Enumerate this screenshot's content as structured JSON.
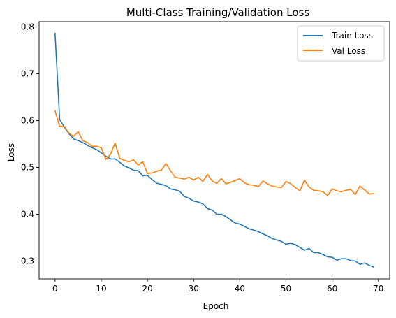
{
  "chart_data": {
    "type": "line",
    "title": "Multi-Class Training/Validation Loss",
    "xlabel": "Epoch",
    "ylabel": "Loss",
    "xlim": [
      -3.45,
      72.45
    ],
    "ylim": [
      0.262,
      0.811
    ],
    "xticks": [
      0,
      10,
      20,
      30,
      40,
      50,
      60,
      70
    ],
    "yticks": [
      0.3,
      0.4,
      0.5,
      0.6,
      0.7,
      0.8
    ],
    "grid": false,
    "legend_position": "top-right",
    "x": [
      0,
      1,
      2,
      3,
      4,
      5,
      6,
      7,
      8,
      9,
      10,
      11,
      12,
      13,
      14,
      15,
      16,
      17,
      18,
      19,
      20,
      21,
      22,
      23,
      24,
      25,
      26,
      27,
      28,
      29,
      30,
      31,
      32,
      33,
      34,
      35,
      36,
      37,
      38,
      39,
      40,
      41,
      42,
      43,
      44,
      45,
      46,
      47,
      48,
      49,
      50,
      51,
      52,
      53,
      54,
      55,
      56,
      57,
      58,
      59,
      60,
      61,
      62,
      63,
      64,
      65,
      66,
      67,
      68,
      69
    ],
    "series": [
      {
        "name": "Train Loss",
        "color": "#1f77b4",
        "values": [
          0.786,
          0.602,
          0.586,
          0.572,
          0.561,
          0.557,
          0.553,
          0.547,
          0.542,
          0.538,
          0.531,
          0.524,
          0.518,
          0.518,
          0.511,
          0.503,
          0.499,
          0.494,
          0.493,
          0.482,
          0.483,
          0.474,
          0.466,
          0.464,
          0.461,
          0.454,
          0.452,
          0.449,
          0.438,
          0.434,
          0.428,
          0.426,
          0.422,
          0.412,
          0.409,
          0.4,
          0.4,
          0.395,
          0.388,
          0.381,
          0.379,
          0.374,
          0.369,
          0.366,
          0.363,
          0.358,
          0.354,
          0.348,
          0.345,
          0.342,
          0.336,
          0.338,
          0.335,
          0.329,
          0.323,
          0.327,
          0.318,
          0.318,
          0.314,
          0.309,
          0.308,
          0.302,
          0.305,
          0.305,
          0.301,
          0.3,
          0.293,
          0.296,
          0.291,
          0.287
        ]
      },
      {
        "name": "Val Loss",
        "color": "#ff7f0e",
        "values": [
          0.621,
          0.587,
          0.588,
          0.573,
          0.566,
          0.576,
          0.557,
          0.553,
          0.545,
          0.545,
          0.542,
          0.517,
          0.528,
          0.552,
          0.519,
          0.515,
          0.512,
          0.516,
          0.505,
          0.512,
          0.487,
          0.488,
          0.492,
          0.494,
          0.508,
          0.493,
          0.479,
          0.477,
          0.475,
          0.479,
          0.473,
          0.479,
          0.47,
          0.485,
          0.471,
          0.466,
          0.476,
          0.465,
          0.468,
          0.472,
          0.476,
          0.467,
          0.463,
          0.462,
          0.459,
          0.471,
          0.465,
          0.46,
          0.458,
          0.457,
          0.47,
          0.465,
          0.457,
          0.45,
          0.473,
          0.458,
          0.451,
          0.45,
          0.448,
          0.44,
          0.454,
          0.45,
          0.448,
          0.451,
          0.453,
          0.442,
          0.46,
          0.452,
          0.443,
          0.444
        ]
      }
    ]
  }
}
